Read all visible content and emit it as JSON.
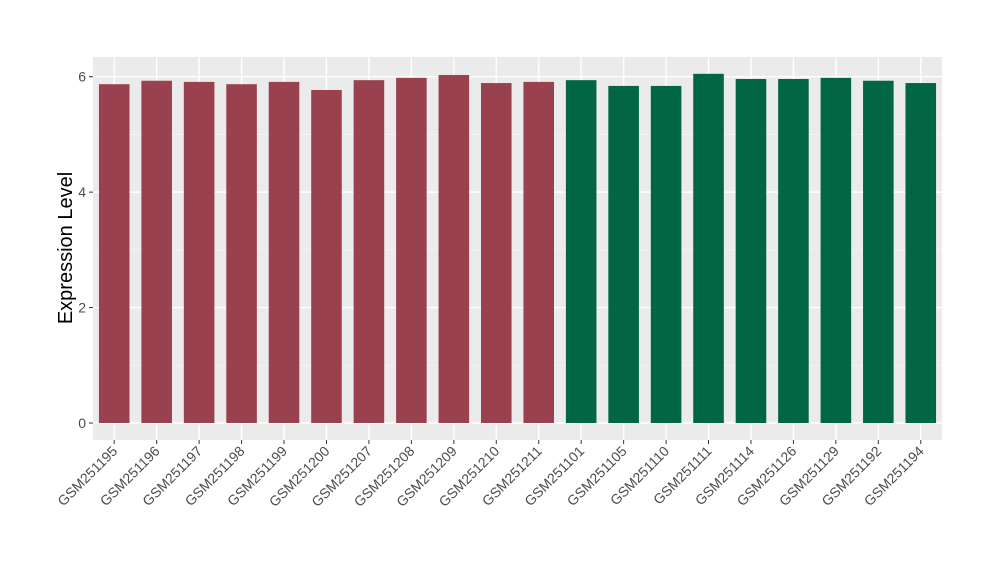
{
  "chart_data": {
    "type": "bar",
    "title": "",
    "xlabel": "",
    "ylabel": "Expression Level",
    "ylim": [
      -0.3,
      6.35
    ],
    "yticks": [
      0,
      2,
      4,
      6
    ],
    "grid": true,
    "categories": [
      "GSM251195",
      "GSM251196",
      "GSM251197",
      "GSM251198",
      "GSM251199",
      "GSM251200",
      "GSM251207",
      "GSM251208",
      "GSM251209",
      "GSM251210",
      "GSM251211",
      "GSM251101",
      "GSM251105",
      "GSM251110",
      "GSM251111",
      "GSM251114",
      "GSM251126",
      "GSM251129",
      "GSM251192",
      "GSM251194"
    ],
    "values": [
      5.87,
      5.93,
      5.91,
      5.87,
      5.91,
      5.77,
      5.94,
      5.98,
      6.03,
      5.89,
      5.91,
      5.94,
      5.84,
      5.84,
      6.05,
      5.96,
      5.96,
      5.98,
      5.93,
      5.89
    ],
    "groups": [
      0,
      0,
      0,
      0,
      0,
      0,
      0,
      0,
      0,
      0,
      0,
      1,
      1,
      1,
      1,
      1,
      1,
      1,
      1,
      1
    ],
    "colors": [
      "#9a4150",
      "#006644"
    ],
    "panel_bg": "#ebebeb"
  }
}
